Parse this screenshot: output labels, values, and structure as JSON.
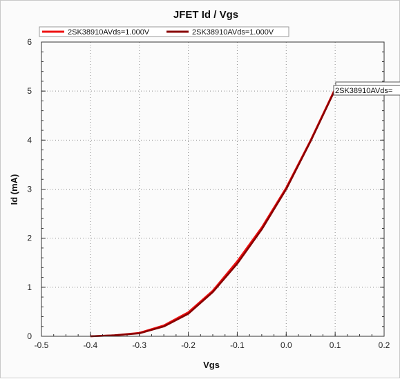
{
  "chart_data": {
    "type": "line",
    "title": "JFET Id / Vgs",
    "xlabel": "Vgs",
    "ylabel": "Id (mA)",
    "xlim": [
      -0.5,
      0.2
    ],
    "ylim": [
      0,
      6
    ],
    "x_ticks": [
      "-0.5",
      "-0.4",
      "-0.3",
      "-0.2",
      "-0.1",
      "0.0",
      "0.1",
      "0.2"
    ],
    "y_ticks": [
      "0",
      "1",
      "2",
      "3",
      "4",
      "5",
      "6"
    ],
    "grid": true,
    "legend_position": "top-left",
    "series": [
      {
        "name": "2SK38910AVds=1.000V",
        "color": "#ee1111",
        "x": [
          -0.4,
          -0.35,
          -0.3,
          -0.25,
          -0.2,
          -0.15,
          -0.1,
          -0.05,
          0.0,
          0.05,
          0.1
        ],
        "y": [
          0.0,
          0.02,
          0.07,
          0.22,
          0.49,
          0.93,
          1.53,
          2.22,
          3.03,
          4.0,
          5.05
        ]
      },
      {
        "name": "2SK38910AVds=1.000V",
        "color": "#880000",
        "x": [
          -0.4,
          -0.35,
          -0.3,
          -0.25,
          -0.2,
          -0.15,
          -0.1,
          -0.05,
          0.0,
          0.05,
          0.1
        ],
        "y": [
          0.0,
          0.02,
          0.06,
          0.2,
          0.46,
          0.9,
          1.48,
          2.18,
          3.0,
          3.98,
          5.03
        ]
      }
    ],
    "annotations": [
      {
        "text": "2SK38910AVds=",
        "x": 0.1,
        "y": 5.05
      }
    ]
  }
}
